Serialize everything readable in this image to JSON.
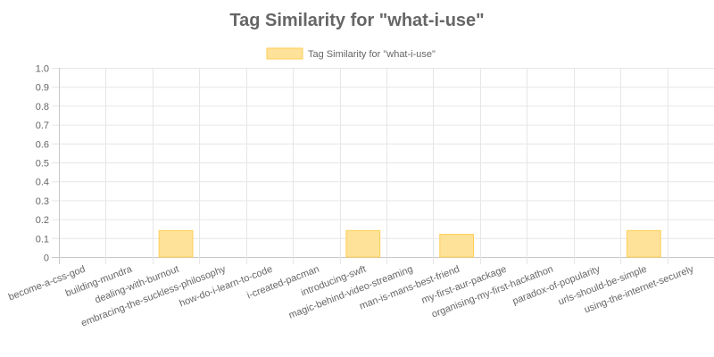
{
  "chart_data": {
    "type": "bar",
    "title": "Tag Similarity for \"what-i-use\"",
    "categories": [
      "become-a-css-god",
      "building-mundra",
      "dealing-with-burnout",
      "embracing-the-suckless-philosophy",
      "how-do-i-learn-to-code",
      "i-created-pacman",
      "introducing-swft",
      "magic-behind-video-streaming",
      "man-is-mans-best-friend",
      "my-first-aur-package",
      "organising-my-first-hackathon",
      "paradox-of-popularity",
      "urls-should-be-simple",
      "using-the-internet-securely"
    ],
    "series": [
      {
        "name": "Tag Similarity for \"what-i-use\"",
        "values": [
          0,
          0,
          0.14,
          0,
          0,
          0,
          0.14,
          0,
          0.12,
          0,
          0,
          0,
          0.14,
          0
        ]
      }
    ],
    "ylim": [
      0,
      1.0
    ],
    "yticks": [
      "0",
      "0.1",
      "0.2",
      "0.3",
      "0.4",
      "0.5",
      "0.6",
      "0.7",
      "0.8",
      "0.9",
      "1.0"
    ],
    "grid": true,
    "legend_position": "top",
    "colors": {
      "bar_fill": "#ffe299",
      "bar_stroke": "#ffce56",
      "grid": "#e6e6e6",
      "text": "#666666"
    }
  }
}
